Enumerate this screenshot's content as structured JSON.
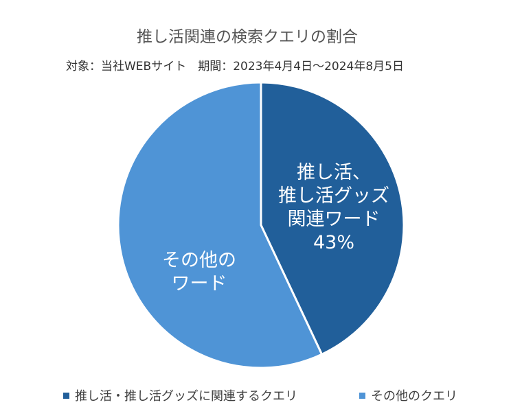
{
  "chart_data": {
    "type": "pie",
    "title": "推し活関連の検索クエリの割合",
    "subtitle": "対象：当社WEBサイト　期間：2023年4月4日～2024年8月5日",
    "slices": [
      {
        "label_lines": [
          "推し活、",
          "推し活グッズ",
          "関連ワード"
        ],
        "value": 43,
        "value_label": "43%",
        "legend": "推し活・推し活グッズに関連するクエリ",
        "color": "#215f9a"
      },
      {
        "label_lines": [
          "その他の",
          "ワード"
        ],
        "value": 57,
        "value_label": "",
        "legend": "その他のクエリ",
        "color": "#4f94d6"
      }
    ],
    "start": "12 o'clock",
    "direction": "clockwise",
    "legend_position": "bottom"
  }
}
